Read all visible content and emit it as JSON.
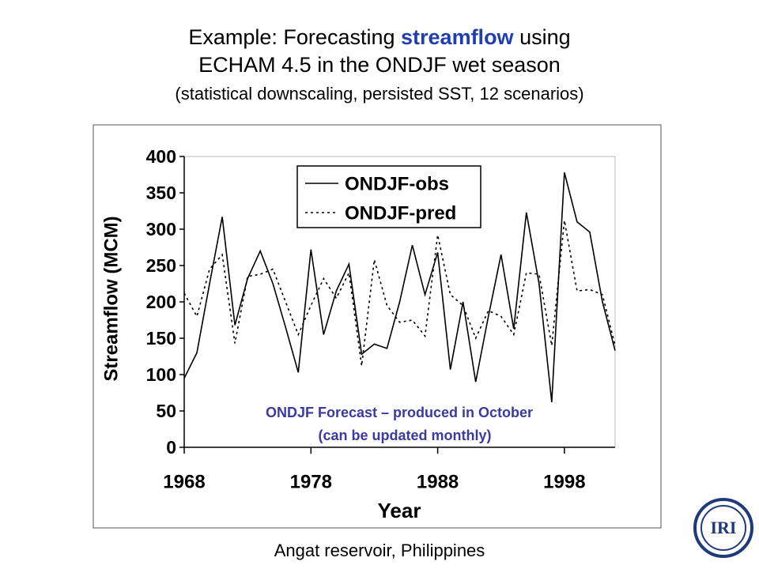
{
  "chart_data": {
    "type": "line",
    "title": [
      [
        "Example:  Forecasting",
        "streamflow",
        "using"
      ],
      "ECHAM 4.5 in the ONDJF wet season"
    ],
    "subtitle": "(statistical downscaling, persisted SST, 12 scenarios)",
    "xlabel": "Year",
    "ylabel": "Streamflow (MCM)",
    "annotations": [
      "ONDJF Forecast – produced in October",
      "(can be updated monthly)"
    ],
    "x": [
      1968,
      1969,
      1970,
      1971,
      1972,
      1973,
      1974,
      1975,
      1976,
      1977,
      1978,
      1979,
      1980,
      1981,
      1982,
      1983,
      1984,
      1985,
      1986,
      1987,
      1988,
      1989,
      1990,
      1991,
      1992,
      1993,
      1994,
      1995,
      1996,
      1997,
      1998,
      1999,
      2000,
      2001,
      2002
    ],
    "series": [
      {
        "name": "ONDJF-obs",
        "color": "#000000",
        "dash": "solid",
        "values": [
          95,
          130,
          225,
          317,
          168,
          232,
          270,
          225,
          165,
          103,
          272,
          155,
          215,
          252,
          128,
          142,
          136,
          200,
          278,
          210,
          268,
          107,
          200,
          90,
          180,
          265,
          163,
          323,
          225,
          62,
          378,
          310,
          296,
          200,
          133
        ]
      },
      {
        "name": "ONDJF-pred",
        "color": "#000000",
        "dash": "dotted",
        "values": [
          212,
          180,
          245,
          265,
          143,
          235,
          238,
          245,
          200,
          155,
          195,
          232,
          205,
          240,
          112,
          258,
          195,
          172,
          175,
          153,
          292,
          210,
          195,
          150,
          188,
          180,
          155,
          240,
          238,
          140,
          312,
          215,
          217,
          210,
          140
        ]
      }
    ],
    "xlim": [
      1968,
      2002
    ],
    "xticks": [
      1968,
      1978,
      1988,
      1998
    ],
    "ylim": [
      0,
      400
    ],
    "yticks": [
      0,
      50,
      100,
      150,
      200,
      250,
      300,
      350,
      400
    ],
    "grid": false,
    "legend": "upper center"
  },
  "caption": "Angat reservoir, Philippines",
  "logo": "IRI"
}
